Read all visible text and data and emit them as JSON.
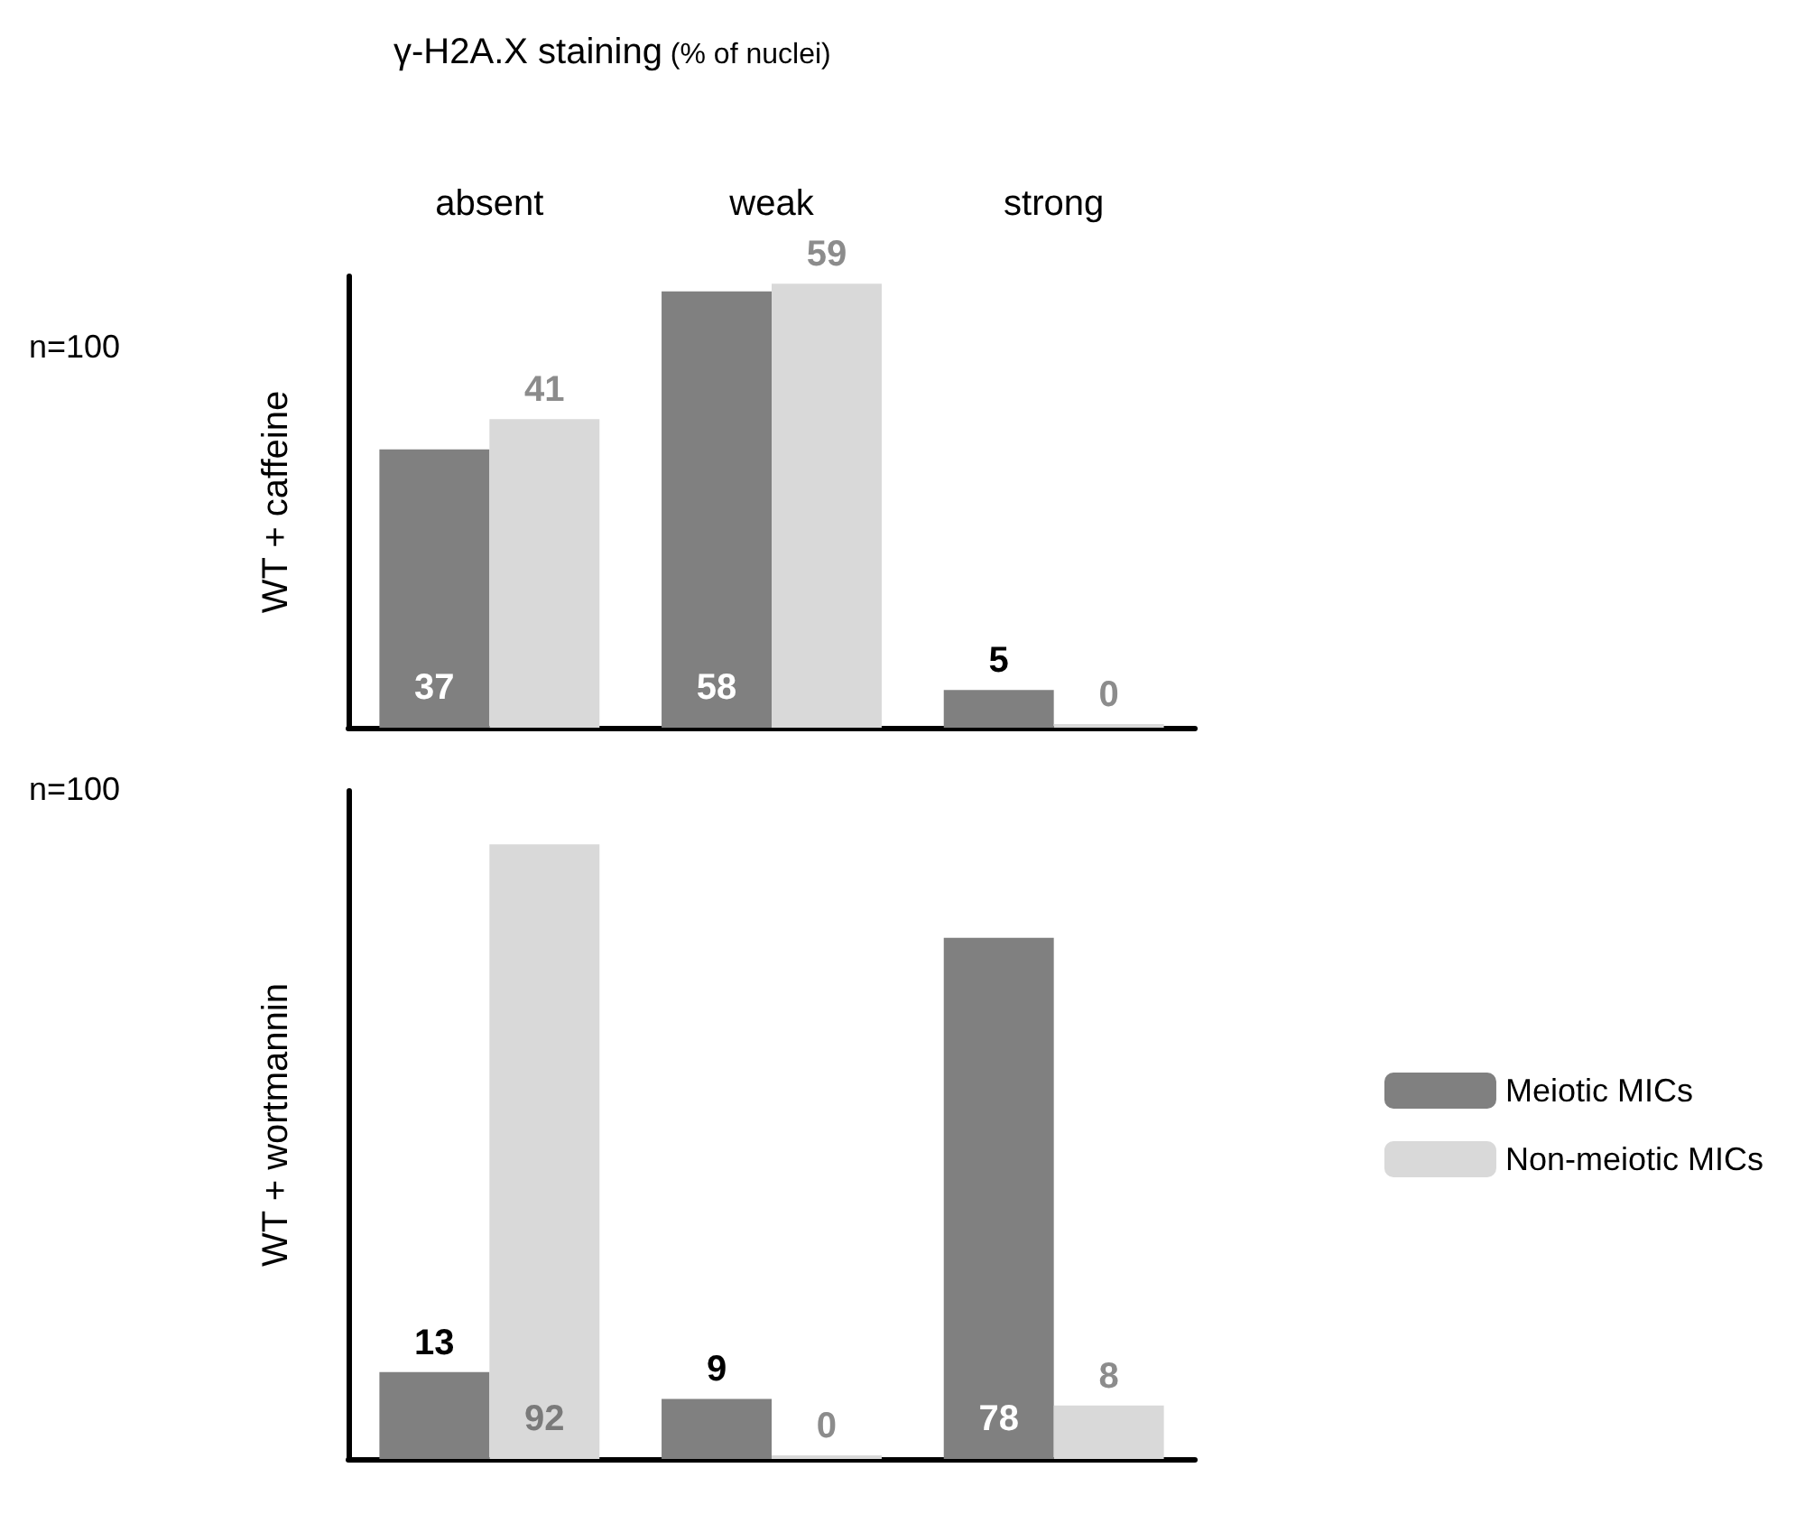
{
  "chart_data": [
    {
      "type": "bar",
      "title": "γ-H2A.X staining",
      "subtitle": "(% of nuclei)",
      "ylabel": "WT + caffeine",
      "annotations": [
        "n=100"
      ],
      "categories": [
        "absent",
        "weak",
        "strong"
      ],
      "tick_labels": "x",
      "data_labels": true,
      "legend": false,
      "grid": false,
      "series": [
        {
          "color": "#808080",
          "values": [
            37,
            58,
            5
          ]
        },
        {
          "color": "#d9d9d9",
          "values": [
            41,
            59,
            0
          ]
        }
      ]
    },
    {
      "type": "bar",
      "ylabel": "WT + wortmannin",
      "annotations": [
        "n=100"
      ],
      "categories": [
        null,
        null,
        null
      ],
      "tick_labels": false,
      "data_labels": true,
      "legend": "right",
      "grid": false,
      "series": [
        {
          "name": "Meiotic MICs",
          "color": "#808080",
          "values": [
            13,
            9,
            78
          ]
        },
        {
          "name": "Non-meiotic MICs",
          "color": "#d9d9d9",
          "values": [
            92,
            0,
            8
          ]
        }
      ]
    }
  ]
}
